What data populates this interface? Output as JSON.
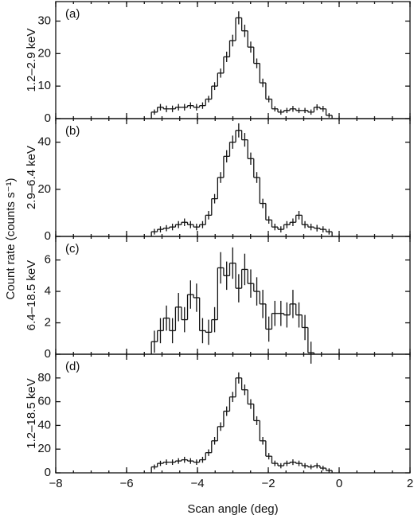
{
  "figure": {
    "ylabel": "Count rate (counts s⁻¹)"
  },
  "chart_data": [
    {
      "type": "histogram",
      "panel_label": "(a)",
      "ylabel": "1.2–2.9 keV",
      "bins": [
        -5.3,
        -5.13,
        -4.96,
        -4.79,
        -4.62,
        -4.45,
        -4.28,
        -4.11,
        -3.94,
        -3.77,
        -3.6,
        -3.43,
        -3.26,
        -3.09,
        -2.92,
        -2.75,
        -2.58,
        -2.41,
        -2.24,
        -2.07,
        -1.9,
        -1.73,
        -1.56,
        -1.39,
        -1.22,
        -1.05,
        -0.88,
        -0.71,
        -0.54,
        -0.37,
        -0.2
      ],
      "values": [
        2,
        3.5,
        3,
        3,
        3.5,
        3.5,
        4,
        3.5,
        4,
        6,
        10,
        14,
        19,
        24,
        31,
        27,
        22,
        17,
        11,
        6,
        3,
        2,
        2.5,
        3,
        2.5,
        2.5,
        2,
        3.5,
        3,
        1
      ],
      "errors": [
        0.8,
        1,
        1,
        1,
        1,
        1,
        1,
        1,
        1,
        1,
        1.2,
        1.4,
        1.6,
        1.8,
        2,
        1.9,
        1.7,
        1.5,
        1.3,
        1,
        0.8,
        0.8,
        0.8,
        0.9,
        0.8,
        0.8,
        0.8,
        0.9,
        0.9,
        0.7
      ],
      "ylim": [
        0,
        36
      ],
      "yticks": [
        0,
        10,
        20,
        30
      ]
    },
    {
      "type": "histogram",
      "panel_label": "(b)",
      "ylabel": "2.9–6.4 keV",
      "bins": [
        -5.3,
        -5.13,
        -4.96,
        -4.79,
        -4.62,
        -4.45,
        -4.28,
        -4.11,
        -3.94,
        -3.77,
        -3.6,
        -3.43,
        -3.26,
        -3.09,
        -2.92,
        -2.75,
        -2.58,
        -2.41,
        -2.24,
        -2.07,
        -1.9,
        -1.73,
        -1.56,
        -1.39,
        -1.22,
        -1.05,
        -0.88,
        -0.71,
        -0.54,
        -0.37,
        -0.2
      ],
      "values": [
        2,
        3,
        3.5,
        4,
        5,
        6,
        5,
        4,
        5,
        9,
        16,
        25,
        34,
        40,
        45,
        41,
        33,
        25,
        14,
        7,
        4,
        3,
        5,
        6,
        9,
        5,
        4,
        3.5,
        3,
        2
      ],
      "errors": [
        1.2,
        1.3,
        1.3,
        1.4,
        1.5,
        1.6,
        1.5,
        1.4,
        1.5,
        1.8,
        2,
        2.3,
        2.6,
        2.8,
        3,
        2.9,
        2.6,
        2.3,
        2,
        1.6,
        1.4,
        1.3,
        1.5,
        1.6,
        1.8,
        1.5,
        1.4,
        1.4,
        1.3,
        1.2
      ],
      "ylim": [
        0,
        50
      ],
      "yticks": [
        0,
        20,
        40
      ]
    },
    {
      "type": "histogram",
      "panel_label": "(c)",
      "ylabel": "6.4–18.5 keV",
      "bins": [
        -5.3,
        -5.13,
        -4.96,
        -4.79,
        -4.62,
        -4.45,
        -4.28,
        -4.11,
        -3.94,
        -3.77,
        -3.6,
        -3.43,
        -3.26,
        -3.09,
        -2.92,
        -2.75,
        -2.58,
        -2.41,
        -2.24,
        -2.07,
        -1.9,
        -1.73,
        -1.56,
        -1.39,
        -1.22,
        -1.05,
        -0.88,
        -0.71,
        -0.54,
        -0.37,
        -0.2
      ],
      "values": [
        0.8,
        1.5,
        2.3,
        1.5,
        3,
        2.2,
        3.8,
        3.6,
        1.5,
        1.4,
        2.2,
        5.5,
        5,
        5.8,
        4.2,
        5.4,
        4.5,
        4,
        3.2,
        1.6,
        2.6,
        2.6,
        2.5,
        3.2,
        2.5,
        1.7,
        0.1,
        null,
        null,
        null
      ],
      "errors": [
        0.7,
        0.8,
        0.8,
        0.8,
        0.9,
        0.8,
        0.9,
        0.9,
        0.8,
        0.8,
        0.8,
        1,
        0.9,
        1,
        0.9,
        1,
        0.9,
        0.9,
        0.9,
        0.8,
        0.8,
        0.8,
        0.8,
        0.9,
        0.8,
        0.8,
        0.7,
        null,
        null,
        null
      ],
      "ylim": [
        0,
        7.5
      ],
      "yticks": [
        0,
        2,
        4,
        6
      ]
    },
    {
      "type": "histogram",
      "panel_label": "(d)",
      "ylabel": "1.2–18.5 keV",
      "xlabel": "Scan angle (deg)",
      "bins": [
        -5.3,
        -5.13,
        -4.96,
        -4.79,
        -4.62,
        -4.45,
        -4.28,
        -4.11,
        -3.94,
        -3.77,
        -3.6,
        -3.43,
        -3.26,
        -3.09,
        -2.92,
        -2.75,
        -2.58,
        -2.41,
        -2.24,
        -2.07,
        -1.9,
        -1.73,
        -1.56,
        -1.39,
        -1.22,
        -1.05,
        -0.88,
        -0.71,
        -0.54,
        -0.37,
        -0.2
      ],
      "values": [
        5,
        8,
        9,
        9,
        10,
        11,
        10,
        9,
        11,
        17,
        27,
        39,
        52,
        64,
        80,
        70,
        58,
        44,
        27,
        14,
        8,
        6,
        8,
        9,
        8,
        6,
        5,
        6,
        4,
        2
      ],
      "errors": [
        2,
        2.2,
        2.3,
        2.3,
        2.4,
        2.5,
        2.4,
        2.3,
        2.5,
        2.8,
        3.2,
        3.6,
        4,
        4.3,
        4.7,
        4.5,
        4.1,
        3.7,
        3.2,
        2.7,
        2.3,
        2.2,
        2.3,
        2.4,
        2.3,
        2.2,
        2,
        2.2,
        2,
        1.8
      ],
      "ylim": [
        0,
        100
      ],
      "yticks": [
        0,
        20,
        40,
        60,
        80
      ],
      "xlim": [
        -8,
        2
      ],
      "xticks": [
        {
          "value": -8,
          "label": "−8"
        },
        {
          "value": -6,
          "label": "−6"
        },
        {
          "value": -4,
          "label": "−4"
        },
        {
          "value": -2,
          "label": "−2"
        },
        0,
        2
      ]
    }
  ]
}
